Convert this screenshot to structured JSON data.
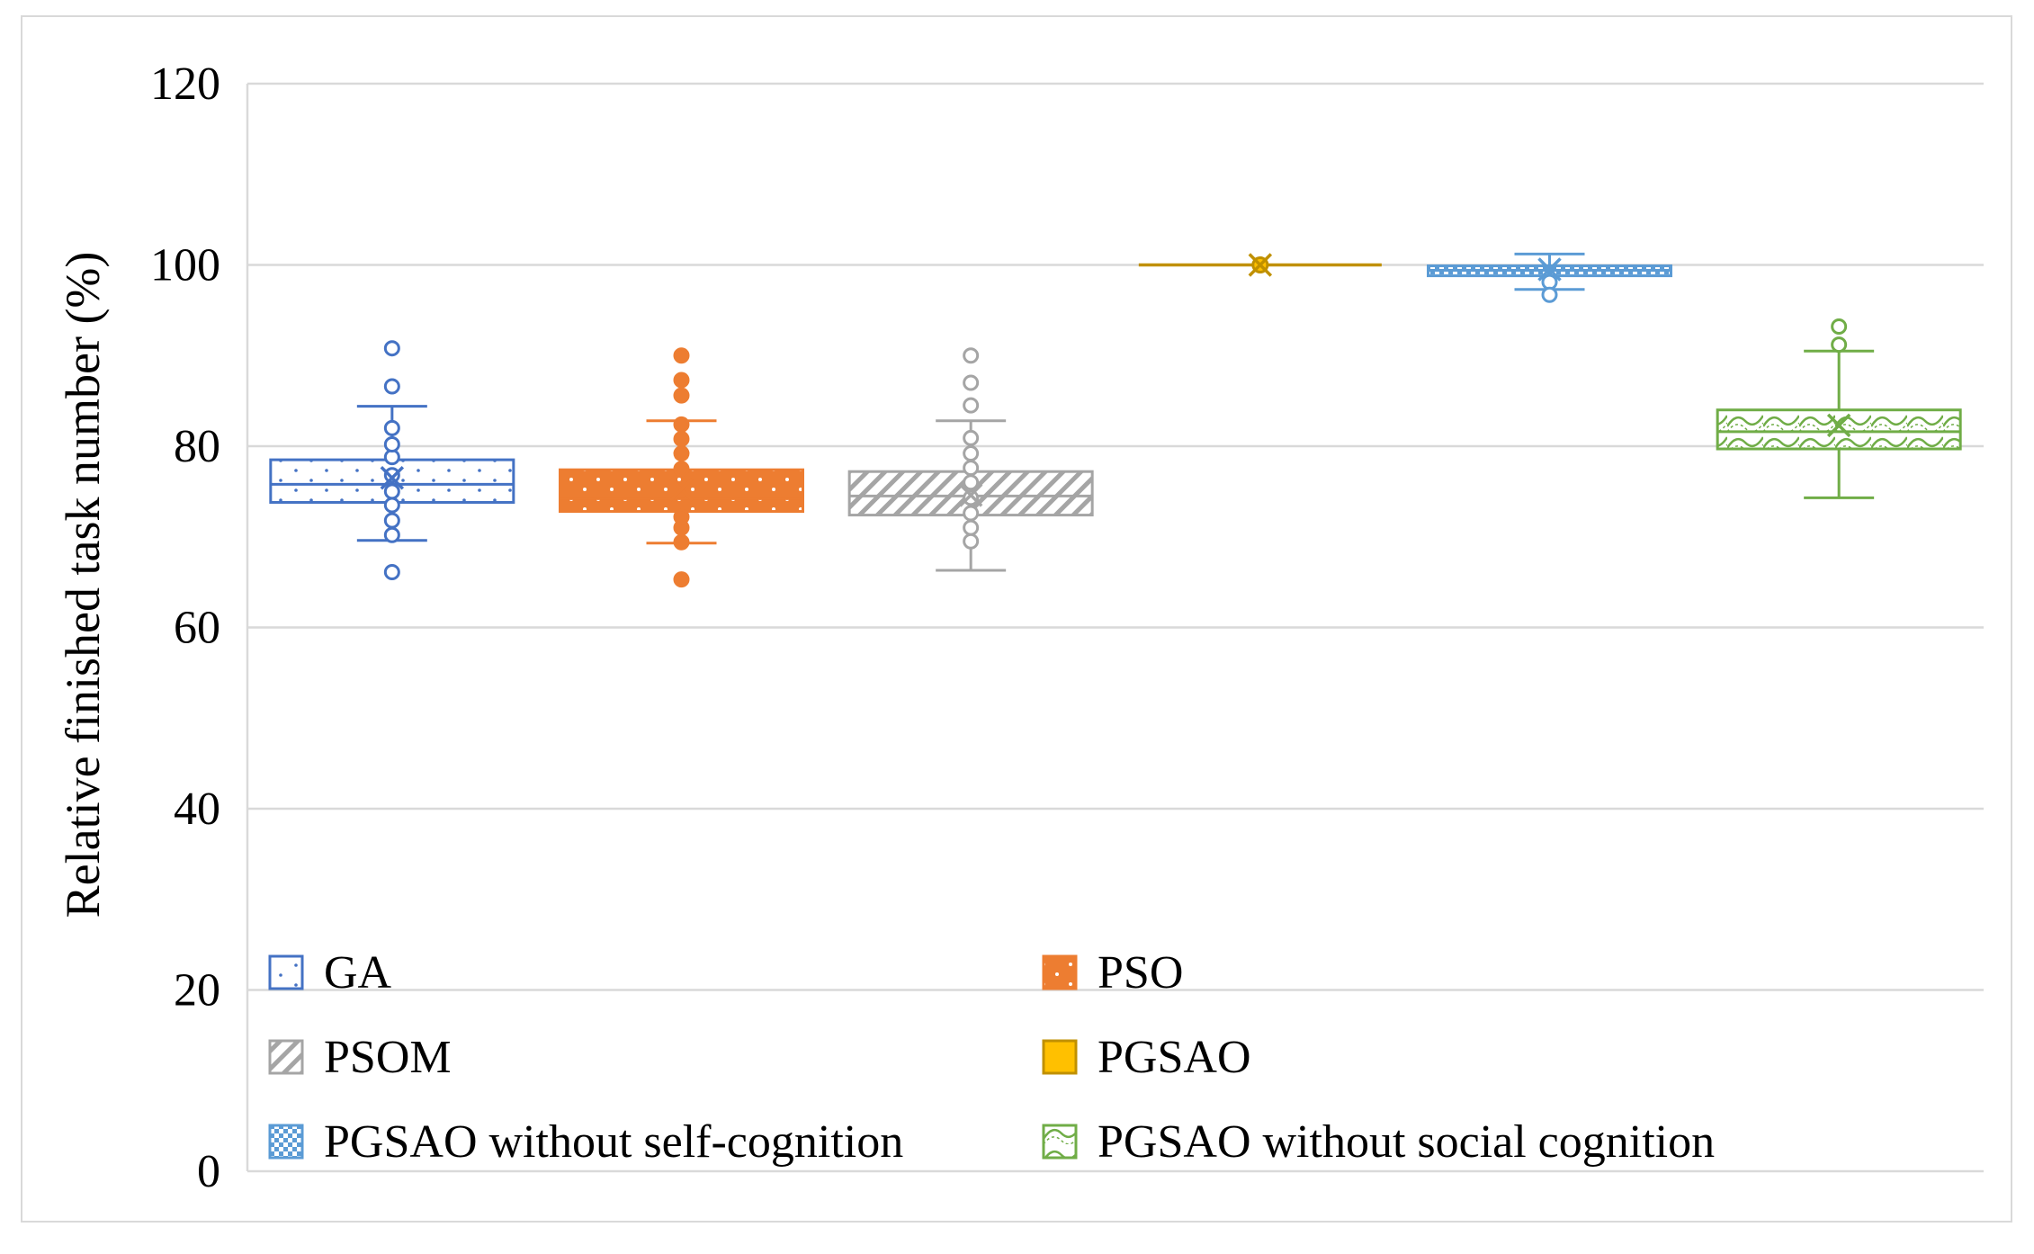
{
  "chart_data": {
    "type": "box",
    "title": "",
    "xlabel": "",
    "ylabel": "Relative finished task number (%)",
    "ylim": [
      0,
      120
    ],
    "yticks": [
      "0",
      "20",
      "40",
      "60",
      "80",
      "100",
      "120"
    ],
    "grid": true,
    "legend_position": "bottom-inside",
    "series": [
      {
        "name": "GA",
        "color": "#4472C4",
        "fill": "dots-sparse",
        "q1": 73.8,
        "median": 75.8,
        "q3": 78.5,
        "mean": 76.5,
        "whisker_low": 69.6,
        "whisker_high": 84.4,
        "inner_points": [
          70.2,
          71.8,
          73.5,
          75.0,
          76.8,
          78.8,
          80.2,
          82.0
        ],
        "outliers": [
          66.1,
          86.6,
          90.8
        ]
      },
      {
        "name": "PSO",
        "color": "#ED7D31",
        "fill": "dots-dense",
        "q1": 72.8,
        "median": 74.2,
        "q3": 77.4,
        "mean": 75.2,
        "whisker_low": 69.3,
        "whisker_high": 82.8,
        "inner_points": [
          71.0,
          72.2,
          77.5,
          79.2,
          80.8,
          82.4
        ],
        "outliers": [
          65.3,
          69.4,
          85.6,
          87.3,
          90.0
        ]
      },
      {
        "name": "PSOM",
        "color": "#A5A5A5",
        "fill": "diagonal",
        "q1": 72.4,
        "median": 74.5,
        "q3": 77.2,
        "mean": 74.6,
        "whisker_low": 66.3,
        "whisker_high": 82.8,
        "inner_points": [
          69.5,
          71.0,
          72.6,
          74.3,
          76.0,
          77.6,
          79.2,
          80.9
        ],
        "outliers": [
          84.5,
          87.0,
          90.0
        ]
      },
      {
        "name": "PGSAO",
        "color": "#C09000",
        "fill": "solid-gold",
        "q1": 100.0,
        "median": 100.0,
        "q3": 100.0,
        "mean": 100.0,
        "whisker_low": 100.0,
        "whisker_high": 100.0,
        "inner_points": [],
        "outliers": []
      },
      {
        "name": "PGSAO without self-cognition",
        "color": "#5B9BD5",
        "fill": "checker",
        "q1": 98.8,
        "median": 99.4,
        "q3": 99.9,
        "mean": 99.5,
        "whisker_low": 97.3,
        "whisker_high": 101.2,
        "inner_points": [
          98.1
        ],
        "outliers": [
          96.7
        ]
      },
      {
        "name": "PGSAO without social cognition",
        "color": "#70AD47",
        "fill": "wave",
        "q1": 79.7,
        "median": 81.6,
        "q3": 84.0,
        "mean": 82.3,
        "whisker_low": 74.3,
        "whisker_high": 90.5,
        "inner_points": [],
        "outliers": [
          91.2,
          93.2
        ]
      }
    ]
  }
}
